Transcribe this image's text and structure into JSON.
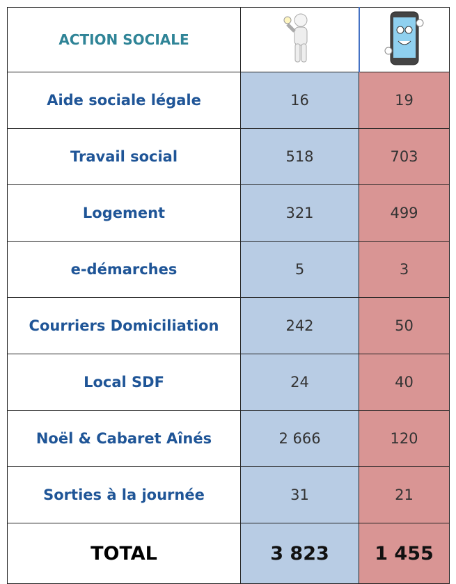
{
  "table": {
    "header": "ACTION SOCIALE",
    "rows": [
      [
        "Aide sociale légale",
        "16",
        "19"
      ],
      [
        "Travail social",
        "518",
        "703"
      ],
      [
        "Logement",
        "321",
        "499"
      ],
      [
        "e-démarches",
        "5",
        "3"
      ],
      [
        "Courriers Domiciliation",
        "242",
        "50"
      ],
      [
        "Local SDF",
        "24",
        "40"
      ],
      [
        "Noël & Cabaret Aînés",
        "2 666",
        "120"
      ],
      [
        "Sorties à la journée",
        "31",
        "21"
      ]
    ],
    "total": [
      "TOTAL",
      "3 823",
      "1 455"
    ]
  }
}
